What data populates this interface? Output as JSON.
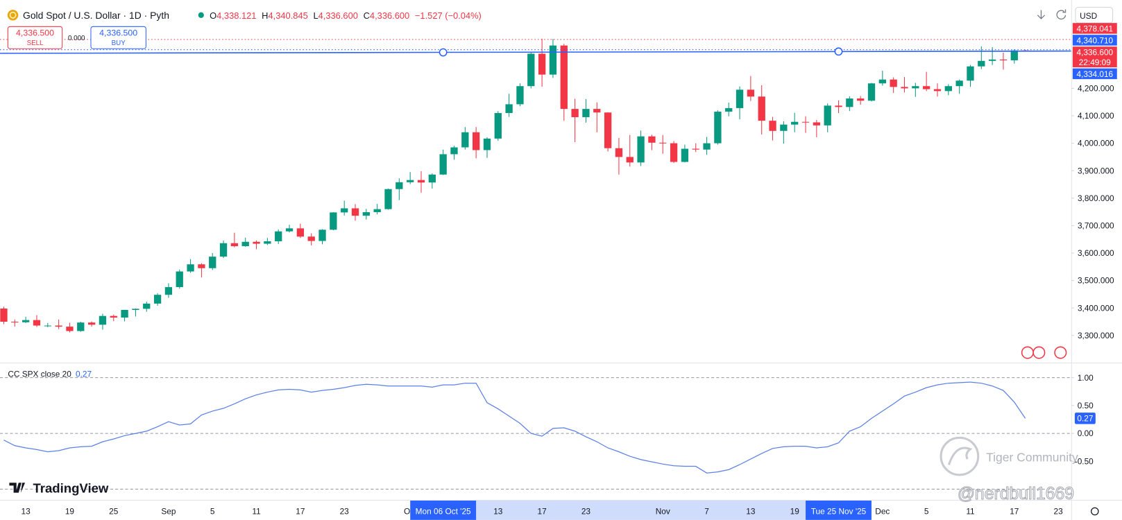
{
  "header": {
    "symbol": "Gold Spot / U.S. Dollar · 1D · Pyth",
    "o_label": "O",
    "open": "4,338.121",
    "h_label": "H",
    "high": "4,340.845",
    "l_label": "L",
    "low": "4,336.600",
    "c_label": "C",
    "close": "4,336.600",
    "change": "−1.527 (−0.04%)",
    "currency": "USD"
  },
  "trade": {
    "sell_price": "4,336.500",
    "sell": "SELL",
    "spread": "0.000",
    "buy_price": "4,336.500",
    "buy": "BUY"
  },
  "chart_data": [
    {
      "type": "candlestick",
      "categories": [
        "Aug 11",
        "Aug 12",
        "Aug 13",
        "Aug 14",
        "Aug 15",
        "Aug 18",
        "Aug 19",
        "Aug 20",
        "Aug 21",
        "Aug 22",
        "Aug 25",
        "Aug 26",
        "Aug 27",
        "Aug 28",
        "Aug 29",
        "Sep 1",
        "Sep 2",
        "Sep 3",
        "Sep 4",
        "Sep 5",
        "Sep 8",
        "Sep 9",
        "Sep 10",
        "Sep 11",
        "Sep 12",
        "Sep 15",
        "Sep 16",
        "Sep 17",
        "Sep 18",
        "Sep 19",
        "Sep 22",
        "Sep 23",
        "Sep 24",
        "Sep 25",
        "Sep 26",
        "Sep 29",
        "Sep 30",
        "Oct 1",
        "Oct 2",
        "Oct 3",
        "Oct 6",
        "Oct 7",
        "Oct 8",
        "Oct 9",
        "Oct 10",
        "Oct 13",
        "Oct 14",
        "Oct 15",
        "Oct 16",
        "Oct 17",
        "Oct 20",
        "Oct 21",
        "Oct 22",
        "Oct 23",
        "Oct 24",
        "Oct 27",
        "Oct 28",
        "Oct 29",
        "Oct 30",
        "Oct 31",
        "Nov 3",
        "Nov 4",
        "Nov 5",
        "Nov 6",
        "Nov 7",
        "Nov 10",
        "Nov 11",
        "Nov 12",
        "Nov 13",
        "Nov 14",
        "Nov 17",
        "Nov 18",
        "Nov 19",
        "Nov 20",
        "Nov 21",
        "Nov 24",
        "Nov 25",
        "Nov 26",
        "Nov 27",
        "Nov 28",
        "Dec 1",
        "Dec 2",
        "Dec 3",
        "Dec 4",
        "Dec 5",
        "Dec 8",
        "Dec 9",
        "Dec 10",
        "Dec 11",
        "Dec 12",
        "Dec 15",
        "Dec 16",
        "Dec 17",
        "Dec 18",
        "Dec 19",
        "Dec 22",
        "Dec 23"
      ],
      "open": [
        3398,
        3350,
        3348,
        3356,
        3336,
        3336,
        3332,
        3316,
        3347,
        3339,
        3371,
        3365,
        3393,
        3397,
        3416,
        3448,
        3476,
        3533,
        3559,
        3545,
        3587,
        3636,
        3625,
        3641,
        3634,
        3643,
        3679,
        3690,
        3660,
        3644,
        3685,
        3748,
        3763,
        3736,
        3749,
        3760,
        3833,
        3858,
        3866,
        3857,
        3886,
        3960,
        3985,
        4040,
        3975,
        4017,
        4110,
        4142,
        4208,
        4326,
        4250,
        4356,
        4125,
        4095,
        4125,
        4112,
        3982,
        3950,
        3930,
        4025,
        4002,
        4000,
        3932,
        3980,
        3977,
        4000,
        4115,
        4128,
        4195,
        4170,
        4082,
        4045,
        4068,
        4078,
        4076,
        4065,
        4137,
        4132,
        4163,
        4155,
        4218,
        4232,
        4205,
        4200,
        4208,
        4197,
        4190,
        4208,
        4228,
        4280,
        4300,
        4305,
        4302,
        4338.121,
        null,
        null,
        null
      ],
      "high": [
        3405,
        3358,
        3368,
        3374,
        3345,
        3358,
        3346,
        3350,
        3351,
        3379,
        3376,
        3393,
        3398,
        3423,
        3454,
        3490,
        3540,
        3578,
        3563,
        3600,
        3646,
        3674,
        3656,
        3646,
        3655,
        3686,
        3703,
        3707,
        3672,
        3687,
        3749,
        3791,
        3778,
        3761,
        3779,
        3835,
        3872,
        3895,
        3898,
        3890,
        3977,
        3991,
        4059,
        4059,
        4022,
        4117,
        4180,
        4218,
        4330,
        4381,
        4380,
        4362,
        4162,
        4161,
        4149,
        4113,
        4019,
        4030,
        4046,
        4031,
        4030,
        4008,
        3995,
        4000,
        4023,
        4120,
        4148,
        4207,
        4245,
        4211,
        4096,
        4080,
        4111,
        4098,
        4085,
        4145,
        4156,
        4171,
        4172,
        4220,
        4264,
        4240,
        4241,
        4220,
        4260,
        4218,
        4215,
        4232,
        4285,
        4353,
        4350,
        4330,
        4342,
        4340.845,
        null,
        null,
        null
      ],
      "low": [
        3341,
        3332,
        3345,
        3331,
        3330,
        3323,
        3311,
        3313,
        3332,
        3321,
        3352,
        3351,
        3369,
        3386,
        3408,
        3437,
        3470,
        3528,
        3511,
        3538,
        3582,
        3621,
        3623,
        3614,
        3629,
        3633,
        3675,
        3655,
        3628,
        3632,
        3683,
        3737,
        3718,
        3722,
        3741,
        3758,
        3793,
        3851,
        3820,
        3835,
        3884,
        3940,
        3977,
        3945,
        3947,
        4009,
        4096,
        4135,
        4200,
        4206,
        4238,
        4082,
        4004,
        4075,
        4040,
        3970,
        3886,
        3915,
        3917,
        3975,
        3962,
        3928,
        3930,
        3968,
        3958,
        3995,
        4098,
        4087,
        4154,
        4032,
        4010,
        3999,
        4040,
        4038,
        4022,
        4040,
        4110,
        4117,
        4140,
        4152,
        4210,
        4183,
        4185,
        4169,
        4190,
        4170,
        4175,
        4180,
        4205,
        4270,
        4285,
        4268,
        4290,
        4336.6,
        null,
        null,
        null
      ],
      "close": [
        3350,
        3348,
        3356,
        3336,
        3336,
        3332,
        3316,
        3347,
        3339,
        3371,
        3365,
        3393,
        3397,
        3416,
        3448,
        3476,
        3533,
        3559,
        3545,
        3587,
        3636,
        3625,
        3641,
        3634,
        3643,
        3679,
        3690,
        3660,
        3644,
        3685,
        3748,
        3763,
        3736,
        3749,
        3760,
        3833,
        3858,
        3866,
        3857,
        3886,
        3960,
        3985,
        4040,
        3975,
        4017,
        4110,
        4142,
        4208,
        4326,
        4250,
        4356,
        4125,
        4095,
        4125,
        4112,
        3982,
        3950,
        3930,
        4025,
        4002,
        4000,
        3932,
        3980,
        3977,
        4000,
        4115,
        4128,
        4195,
        4170,
        4082,
        4045,
        4068,
        4078,
        4076,
        4065,
        4137,
        4132,
        4163,
        4155,
        4218,
        4232,
        4205,
        4200,
        4208,
        4197,
        4190,
        4208,
        4228,
        4280,
        4300,
        4305,
        4302,
        4338.121,
        4336.6,
        null,
        null,
        null
      ],
      "up_color": "#089981",
      "down_color": "#f23645",
      "ylim": [
        3206.25,
        4417.2
      ],
      "yticks": [
        {
          "value": 3300,
          "label": "3,300.000"
        },
        {
          "value": 3400,
          "label": "3,400.000"
        },
        {
          "value": 3500,
          "label": "3,500.000"
        },
        {
          "value": 3600,
          "label": "3,600.000"
        },
        {
          "value": 3700,
          "label": "3,700.000"
        },
        {
          "value": 3800,
          "label": "3,800.000"
        },
        {
          "value": 3900,
          "label": "3,900.000"
        },
        {
          "value": 4000,
          "label": "4,000.000"
        },
        {
          "value": 4100,
          "label": "4,100.000"
        },
        {
          "value": 4200,
          "label": "4,200.000"
        }
      ],
      "xticks": [
        {
          "value": "Aug 13",
          "label": "13"
        },
        {
          "value": "Aug 19",
          "label": "19"
        },
        {
          "value": "Aug 25",
          "label": "25"
        },
        {
          "value": "Sep 1",
          "label": "Sep"
        },
        {
          "value": "Sep 5",
          "label": "5"
        },
        {
          "value": "Sep 11",
          "label": "11"
        },
        {
          "value": "Sep 17",
          "label": "17"
        },
        {
          "value": "Sep 23",
          "label": "23"
        },
        {
          "value": "Oct 1",
          "label": "Oct"
        },
        {
          "value": "Oct 13",
          "label": "13"
        },
        {
          "value": "Oct 17",
          "label": "17"
        },
        {
          "value": "Oct 23",
          "label": "23"
        },
        {
          "value": "Nov 3",
          "label": "Nov"
        },
        {
          "value": "Nov 7",
          "label": "7"
        },
        {
          "value": "Nov 13",
          "label": "13"
        },
        {
          "value": "Nov 19",
          "label": "19"
        },
        {
          "value": "Dec 1",
          "label": "Dec"
        },
        {
          "value": "Dec 5",
          "label": "5"
        },
        {
          "value": "Dec 11",
          "label": "11"
        },
        {
          "value": "Dec 17",
          "label": "17"
        },
        {
          "value": "Dec 23",
          "label": "23"
        }
      ],
      "crosshair_labels": [
        {
          "value": "Oct 6",
          "label": "Mon 06 Oct '25"
        },
        {
          "value": "Nov 25",
          "label": "Tue 25 Nov '25"
        }
      ],
      "trend_line": {
        "x": [
          "Oct 6",
          "Nov 25"
        ],
        "values": [
          4331,
          4334.016
        ],
        "color": "#2962ff"
      },
      "price_labels": [
        {
          "value": 4378.041,
          "label": "4,378.041",
          "color": "#f23645",
          "line": true
        },
        {
          "value": 4340.71,
          "label": "4,340.710",
          "color": "#2962ff",
          "line": true
        },
        {
          "value": 4336.6,
          "label": "4,336.600",
          "color": "#f23645",
          "line": false,
          "countdown": "22:49:09"
        },
        {
          "value": 4334.016,
          "label": "4,334.016",
          "color": "#2962ff",
          "line": false
        }
      ]
    },
    {
      "type": "line",
      "title": "CC SPX close 20",
      "last_value": "0.27",
      "color": "#5b7fe6",
      "values": [
        -0.12,
        -0.22,
        -0.26,
        -0.29,
        -0.33,
        -0.31,
        -0.26,
        -0.24,
        -0.23,
        -0.15,
        -0.1,
        -0.04,
        0.0,
        0.04,
        0.12,
        0.21,
        0.15,
        0.17,
        0.33,
        0.4,
        0.45,
        0.53,
        0.62,
        0.69,
        0.74,
        0.78,
        0.79,
        0.78,
        0.74,
        0.77,
        0.79,
        0.82,
        0.86,
        0.88,
        0.87,
        0.85,
        0.85,
        0.85,
        0.85,
        0.83,
        0.87,
        0.87,
        0.9,
        0.9,
        0.55,
        0.44,
        0.31,
        0.18,
        0.0,
        -0.05,
        0.09,
        0.1,
        0.04,
        -0.06,
        -0.15,
        -0.26,
        -0.33,
        -0.41,
        -0.47,
        -0.51,
        -0.55,
        -0.58,
        -0.59,
        -0.59,
        -0.71,
        -0.69,
        -0.65,
        -0.56,
        -0.46,
        -0.36,
        -0.27,
        -0.24,
        -0.23,
        -0.23,
        -0.26,
        -0.24,
        -0.17,
        0.04,
        0.12,
        0.27,
        0.4,
        0.53,
        0.67,
        0.74,
        0.82,
        0.87,
        0.9,
        0.91,
        0.92,
        0.9,
        0.85,
        0.77,
        0.56,
        0.27,
        null,
        null,
        null
      ],
      "ylim": [
        -1.077,
        1.231
      ],
      "yticks": [
        {
          "value": 1,
          "label": "1.00"
        },
        {
          "value": 0.5,
          "label": "0.50"
        },
        {
          "value": 0,
          "label": "0.00"
        },
        {
          "value": -0.5,
          "label": "-0.50"
        }
      ],
      "levels": [
        1,
        0,
        -1
      ]
    }
  ],
  "branding": {
    "logo": "TradingView",
    "watermark": "Tiger Community",
    "handle": "@nerdbull1669"
  }
}
